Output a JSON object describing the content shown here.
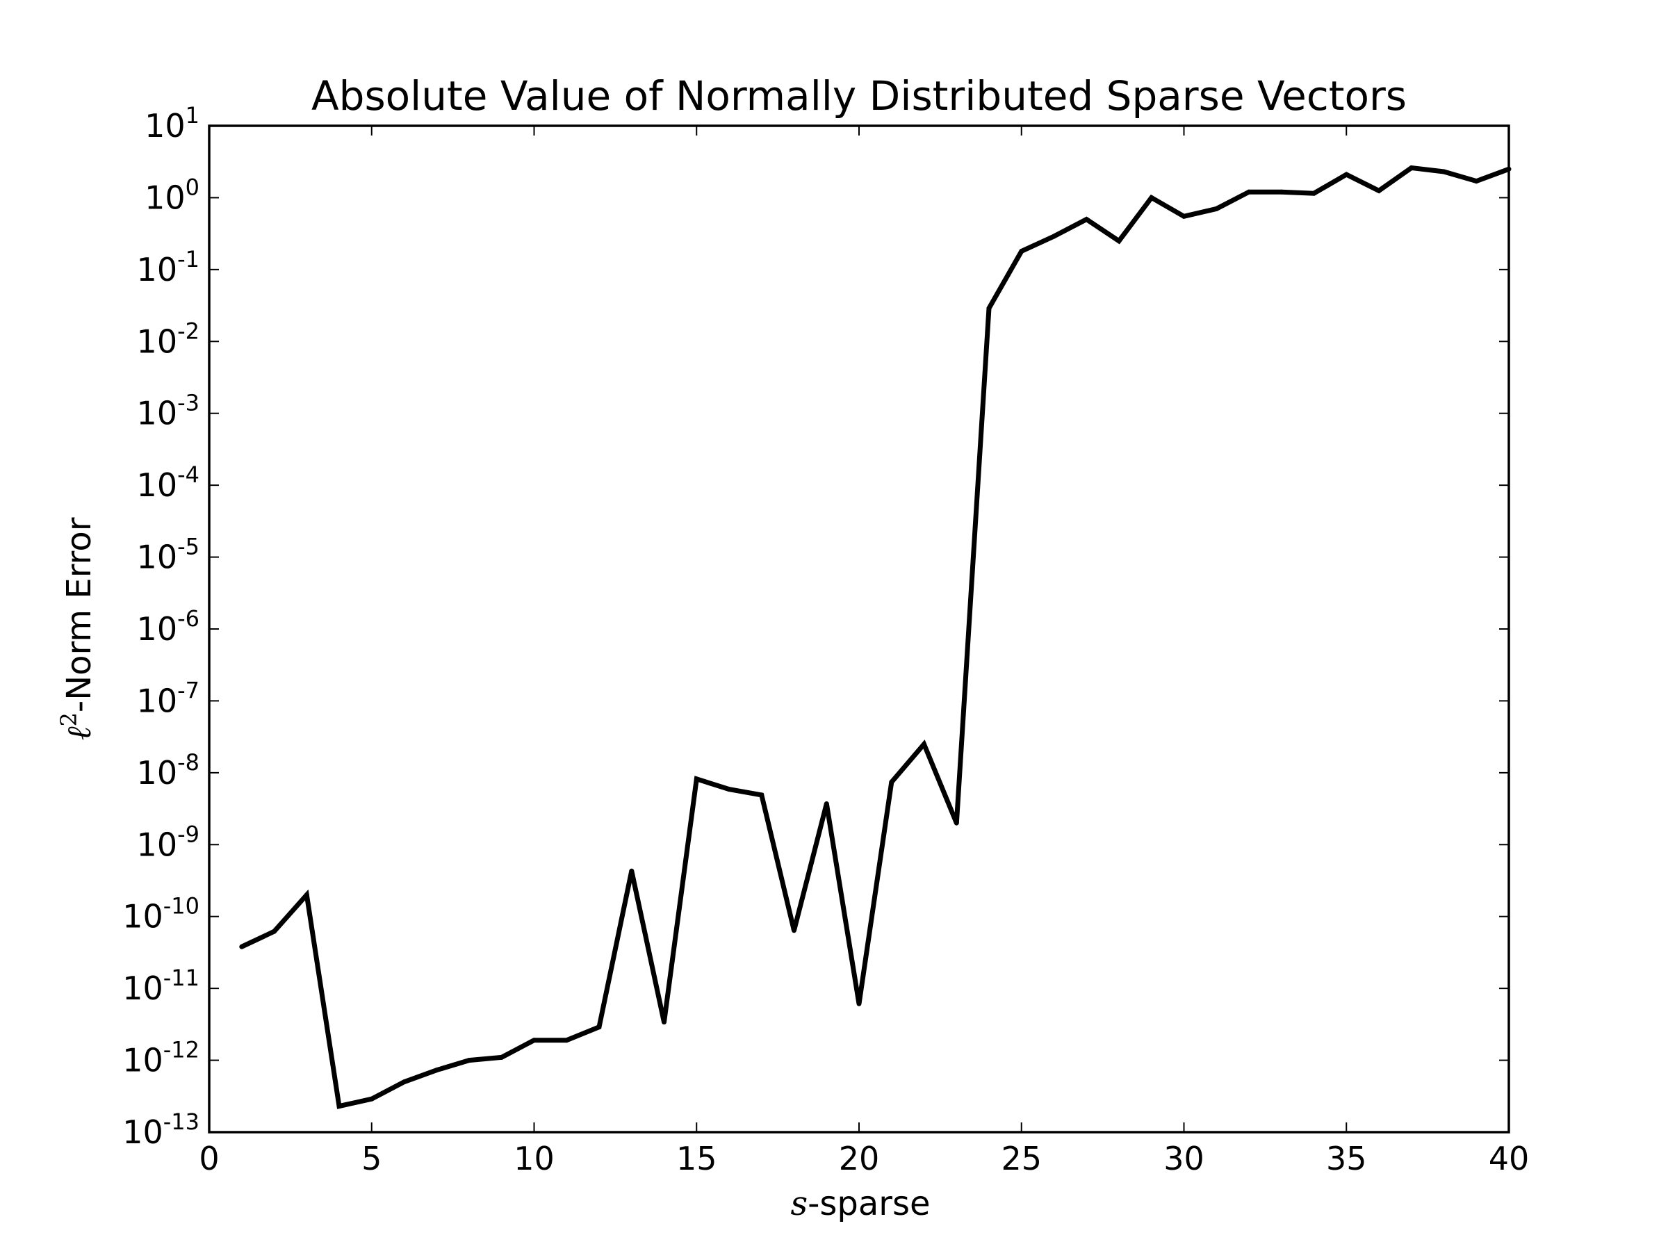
{
  "chart_data": {
    "type": "line",
    "title": "Absolute Value of Normally Distributed Sparse Vectors",
    "xlabel": {
      "var": "s",
      "text": "-sparse"
    },
    "ylabel": {
      "ell": "ℓ",
      "sup": "2",
      "text": "-Norm Error"
    },
    "xlim": [
      0,
      40
    ],
    "ylim": [
      1e-13,
      10
    ],
    "yscale": "log",
    "grid": false,
    "line_color": "#000000",
    "x_ticks": [
      0,
      5,
      10,
      15,
      20,
      25,
      30,
      35,
      40
    ],
    "y_ticks": [
      {
        "exp": 1,
        "base": "10",
        "sup": "1"
      },
      {
        "exp": 0,
        "base": "10",
        "sup": "0"
      },
      {
        "exp": -1,
        "base": "10",
        "sup": "-1"
      },
      {
        "exp": -2,
        "base": "10",
        "sup": "-2"
      },
      {
        "exp": -3,
        "base": "10",
        "sup": "-3"
      },
      {
        "exp": -4,
        "base": "10",
        "sup": "-4"
      },
      {
        "exp": -5,
        "base": "10",
        "sup": "-5"
      },
      {
        "exp": -6,
        "base": "10",
        "sup": "-6"
      },
      {
        "exp": -7,
        "base": "10",
        "sup": "-7"
      },
      {
        "exp": -8,
        "base": "10",
        "sup": "-8"
      },
      {
        "exp": -9,
        "base": "10",
        "sup": "-9"
      },
      {
        "exp": -10,
        "base": "10",
        "sup": "-10"
      },
      {
        "exp": -11,
        "base": "10",
        "sup": "-11"
      },
      {
        "exp": -12,
        "base": "10",
        "sup": "-12"
      },
      {
        "exp": -13,
        "base": "10",
        "sup": "-13"
      }
    ],
    "series": [
      {
        "x": [
          1,
          2,
          3,
          4,
          5,
          6,
          7,
          8,
          9,
          10,
          11,
          12,
          13,
          14,
          15,
          16,
          17,
          18,
          19,
          20,
          21,
          22,
          23,
          24,
          25,
          26,
          27,
          28,
          29,
          30,
          31,
          32,
          33,
          34,
          35,
          36,
          37,
          38,
          39,
          40
        ],
        "y": [
          3.8e-11,
          6.2e-11,
          2e-10,
          2.3e-13,
          2.9e-13,
          5e-13,
          7.3e-13,
          1e-12,
          1.1e-12,
          1.9e-12,
          1.9e-12,
          2.9e-12,
          4.3e-10,
          3.4e-12,
          8.2e-09,
          5.9e-09,
          4.9e-09,
          6.4e-11,
          3.7e-09,
          6.1e-12,
          7.4e-09,
          2.5e-08,
          2e-09,
          0.029,
          0.18,
          0.29,
          0.5,
          0.25,
          1.0,
          0.55,
          0.7,
          1.2,
          1.2,
          1.15,
          2.1,
          1.25,
          2.6,
          2.3,
          1.7,
          2.5
        ]
      }
    ]
  }
}
